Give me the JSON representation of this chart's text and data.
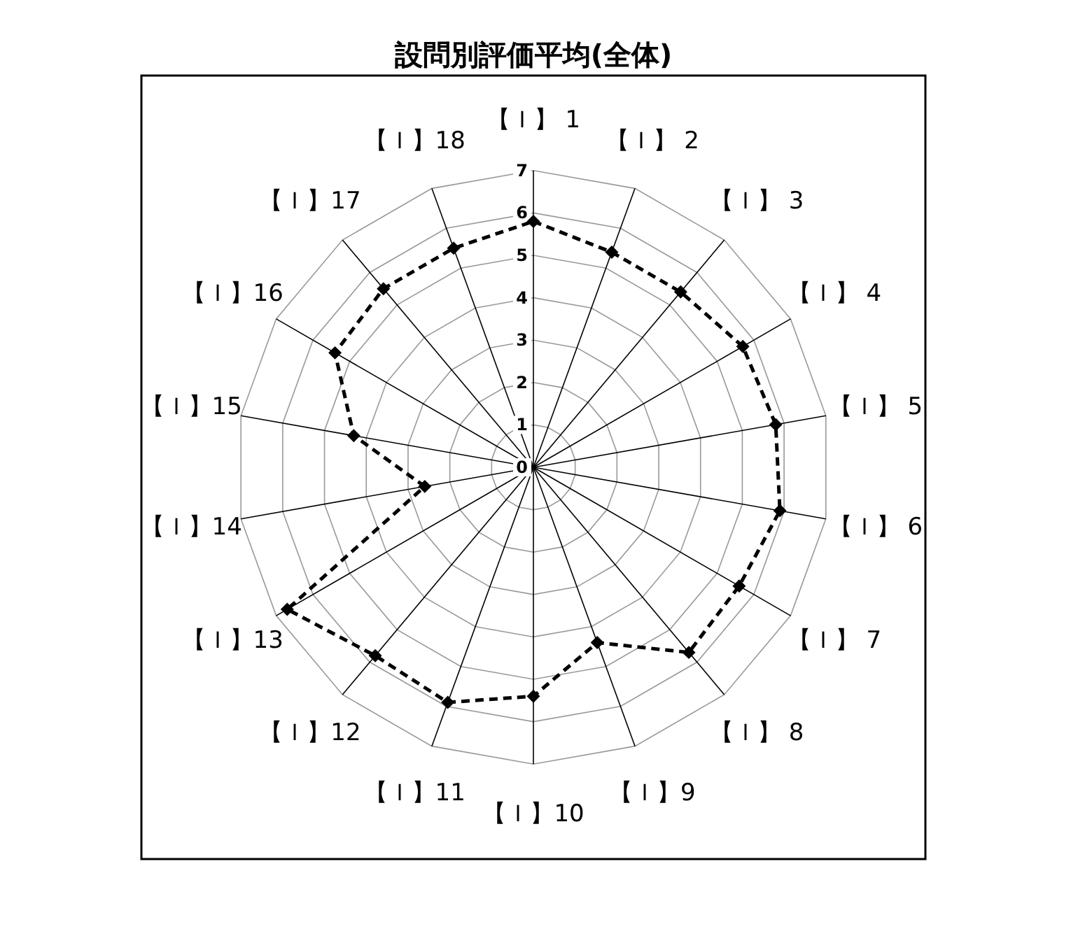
{
  "chart_data": {
    "type": "radar",
    "title": "設問別評価平均(全体)",
    "categories": [
      "【Ｉ】 1",
      "【Ｉ】 2",
      "【Ｉ】 3",
      "【Ｉ】 4",
      "【Ｉ】 5",
      "【Ｉ】 6",
      "【Ｉ】 7",
      "【Ｉ】 8",
      "【Ｉ】9",
      "【Ｉ】10",
      "【Ｉ】11",
      "【Ｉ】12",
      "【Ｉ】13",
      "【Ｉ】14",
      "【Ｉ】15",
      "【Ｉ】16",
      "【Ｉ】17",
      "【Ｉ】18"
    ],
    "series": [
      {
        "color": "#000000",
        "values": [
          5.8,
          5.4,
          5.4,
          5.7,
          5.8,
          5.9,
          5.6,
          5.7,
          4.4,
          5.4,
          5.9,
          5.8,
          6.7,
          2.6,
          4.3,
          5.4,
          5.5,
          5.5
        ]
      }
    ],
    "ylim": [
      0,
      7
    ],
    "yticks": [
      0,
      1,
      2,
      3,
      4,
      5,
      6,
      7
    ],
    "grid": true,
    "marker": "diamond",
    "line_style": "dashed"
  }
}
